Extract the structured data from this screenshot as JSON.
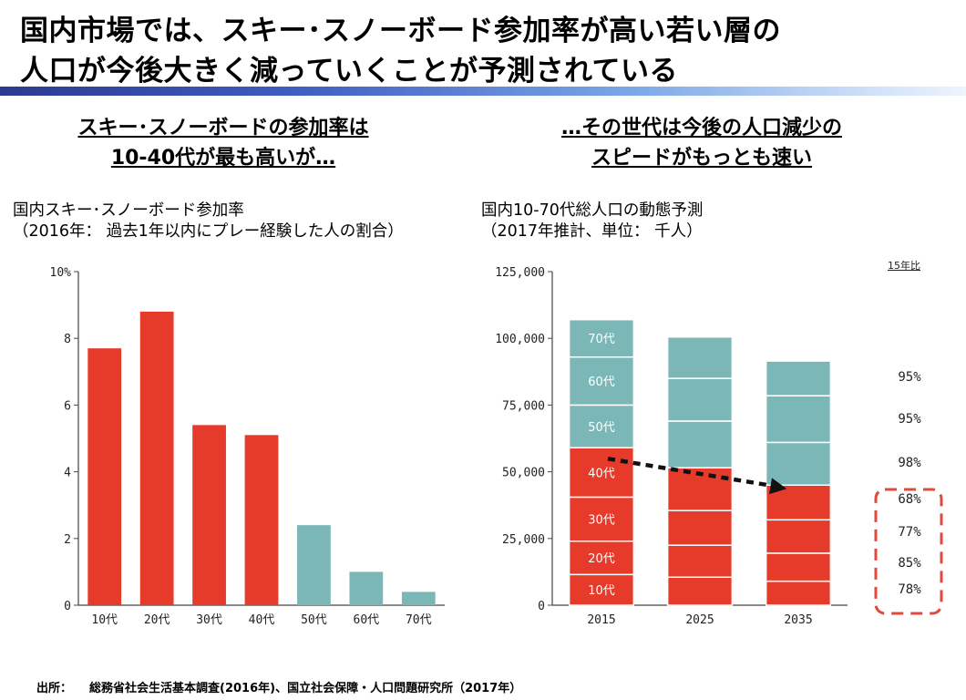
{
  "title": {
    "line1": "国内市場では、スキー･スノーボード参加率が高い若い層の",
    "line2": "人口が今後大きく減っていくことが予測されている"
  },
  "left": {
    "subhead_line1": "スキー･スノーボードの参加率は",
    "subhead_line2": "10-40代が最も高いが…",
    "caption_line1": "国内スキー･スノーボード参加率",
    "caption_line2": "（2016年： 過去1年以内にプレー経験した人の割合）"
  },
  "right": {
    "subhead_line1": "…その世代は今後の人口減少の",
    "subhead_line2": "スピードがもっとも速い",
    "caption_line1": "国内10-70代総人口の動態予測",
    "caption_line2": "（2017年推計、単位： 千人）",
    "ratio_header": "15年比",
    "ratios": [
      "95%",
      "95%",
      "98%",
      "68%",
      "77%",
      "85%",
      "78%"
    ]
  },
  "source": {
    "label": "出所：",
    "text": "総務省社会生活基本調査(2016年)、国立社会保障・人口問題研究所（2017年）"
  },
  "colors": {
    "young": "#e63a2a",
    "old": "#7cb7b7",
    "highlight": "#e04a3c",
    "arrow": "#111111"
  },
  "chart_data": [
    {
      "type": "bar",
      "categories": [
        "10代",
        "20代",
        "30代",
        "40代",
        "50代",
        "60代",
        "70代"
      ],
      "values": [
        7.7,
        8.8,
        5.4,
        5.1,
        2.4,
        1.0,
        0.4
      ],
      "ylim": [
        0,
        10
      ],
      "yticks": [
        "0",
        "2",
        "4",
        "6",
        "8",
        "10%"
      ],
      "colors": [
        "#e63a2a",
        "#e63a2a",
        "#e63a2a",
        "#e63a2a",
        "#7cb7b7",
        "#7cb7b7",
        "#7cb7b7"
      ]
    },
    {
      "type": "bar",
      "stacked": true,
      "categories": [
        "2015",
        "2025",
        "2035"
      ],
      "ylim": [
        0,
        125000
      ],
      "yticks": [
        "0",
        "25,000",
        "50,000",
        "75,000",
        "100,000",
        "125,000"
      ],
      "series": [
        {
          "name": "10代",
          "values": [
            11500,
            10500,
            9000
          ]
        },
        {
          "name": "20代",
          "values": [
            12500,
            12000,
            10500
          ]
        },
        {
          "name": "30代",
          "values": [
            16500,
            13000,
            12500
          ]
        },
        {
          "name": "40代",
          "values": [
            18500,
            16000,
            13000
          ]
        },
        {
          "name": "50代",
          "values": [
            16000,
            17500,
            16000
          ]
        },
        {
          "name": "60代",
          "values": [
            18000,
            16000,
            17500
          ]
        },
        {
          "name": "70代",
          "values": [
            14000,
            15500,
            13000
          ]
        }
      ]
    }
  ]
}
